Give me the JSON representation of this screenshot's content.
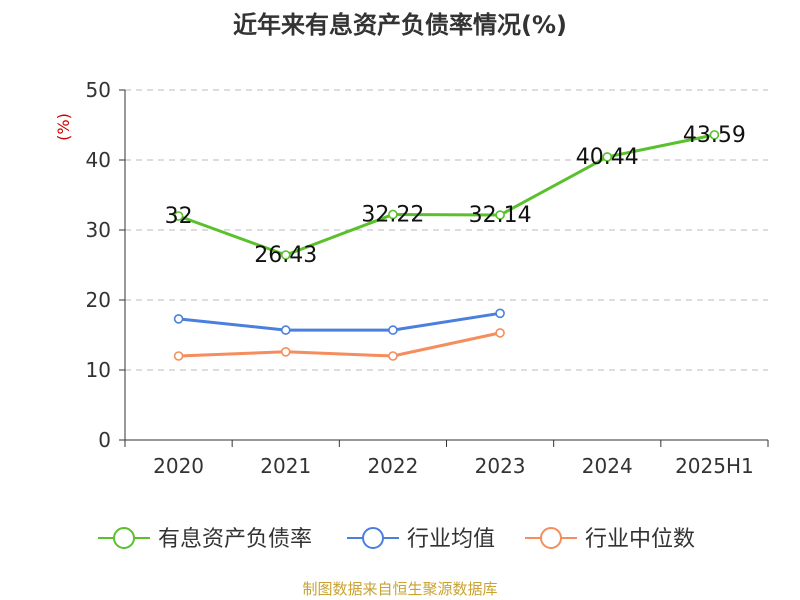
{
  "chart_data": {
    "type": "line",
    "title": "近年来有息资产负债率情况(%)",
    "ylabel": "(%)",
    "xlabel": "",
    "categories": [
      "2020",
      "2021",
      "2022",
      "2023",
      "2024",
      "2025H1"
    ],
    "yticks": [
      "0",
      "10",
      "20",
      "30",
      "40",
      "50"
    ],
    "ylim": [
      0,
      50
    ],
    "grid": true,
    "legend_position": "bottom",
    "series": [
      {
        "name": "有息资产负债率",
        "color": "#5ac02c",
        "values": [
          32,
          26.43,
          32.22,
          32.14,
          40.44,
          43.59
        ],
        "data_labels": [
          "32",
          "26.43",
          "32.22",
          "32.14",
          "40.44",
          "43.59"
        ]
      },
      {
        "name": "行业均值",
        "color": "#4a7fdd",
        "values": [
          17.3,
          15.7,
          15.7,
          18.1,
          null,
          null
        ]
      },
      {
        "name": "行业中位数",
        "color": "#f58d5c",
        "values": [
          12,
          12.6,
          12,
          15.3,
          null,
          null
        ]
      }
    ]
  },
  "footer": "制图数据来自恒生聚源数据库",
  "colors": {
    "ylabel": "#cc0000",
    "footer": "#c9a233",
    "grid": "#bbbbbb",
    "axis": "#333333"
  }
}
